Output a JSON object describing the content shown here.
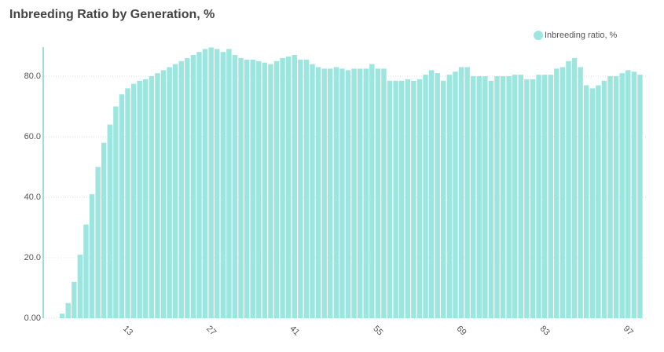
{
  "chart_data": {
    "type": "bar",
    "title": "Inbreeding Ratio by Generation, %",
    "series": [
      {
        "name": "Inbreeding ratio, %",
        "color": "#9de6df",
        "values": [
          0,
          1.5,
          5,
          12,
          21,
          31,
          41,
          50,
          58,
          64,
          70,
          74,
          76,
          77.5,
          78.5,
          79,
          80,
          81,
          82,
          83,
          84,
          85,
          86,
          87,
          88,
          89,
          89.5,
          89,
          88,
          89,
          87,
          86,
          85.5,
          85.5,
          85,
          84.5,
          84,
          85,
          86,
          86.5,
          87,
          85.5,
          85.5,
          84,
          83,
          82.5,
          82.5,
          83,
          82.5,
          82,
          82.5,
          82.5,
          82.5,
          84,
          82.5,
          82.5,
          78.5,
          78.5,
          78.5,
          79,
          78.5,
          79,
          80.5,
          82,
          81,
          78.5,
          80.5,
          81.5,
          83,
          83,
          80,
          80,
          80,
          78.5,
          80,
          80,
          80,
          80.5,
          80.5,
          79,
          79,
          80.5,
          80.5,
          80.5,
          82.5,
          83,
          85,
          86,
          83,
          77,
          76,
          77,
          78.5,
          80,
          80,
          81,
          82,
          81.5,
          80.5
        ]
      }
    ],
    "x": [
      1,
      2,
      3,
      4,
      5,
      6,
      7,
      8,
      9,
      10,
      11,
      12,
      13,
      14,
      15,
      16,
      17,
      18,
      19,
      20,
      21,
      22,
      23,
      24,
      25,
      26,
      27,
      28,
      29,
      30,
      31,
      32,
      33,
      34,
      35,
      36,
      37,
      38,
      39,
      40,
      41,
      42,
      43,
      44,
      45,
      46,
      47,
      48,
      49,
      50,
      51,
      52,
      53,
      54,
      55,
      56,
      57,
      58,
      59,
      60,
      61,
      62,
      63,
      64,
      65,
      66,
      67,
      68,
      69,
      70,
      71,
      72,
      73,
      74,
      75,
      76,
      77,
      78,
      79,
      80,
      81,
      82,
      83,
      84,
      85,
      86,
      87,
      88,
      89,
      90,
      91,
      92,
      93,
      94,
      95,
      96,
      97,
      98,
      99
    ],
    "xlim": [
      0,
      100
    ],
    "xticks": [
      13,
      27,
      41,
      55,
      69,
      83,
      97
    ],
    "ylim": [
      0,
      90
    ],
    "yticks": [
      {
        "value": 0,
        "label": "0.00"
      },
      {
        "value": 20,
        "label": "20.0"
      },
      {
        "value": 40,
        "label": "40.0"
      },
      {
        "value": 60,
        "label": "60.0"
      },
      {
        "value": 80,
        "label": "80.0"
      }
    ],
    "grid": true,
    "legend": "top-right"
  }
}
